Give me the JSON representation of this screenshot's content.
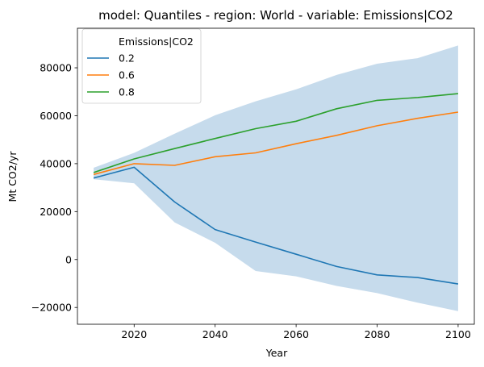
{
  "chart_data": {
    "type": "line",
    "title": "model: Quantiles - region: World - variable: Emissions|CO2",
    "xlabel": "Year",
    "ylabel": "Mt CO2/yr",
    "xlim": [
      2006,
      2104
    ],
    "ylim": [
      -27000,
      96500
    ],
    "xticks": [
      2020,
      2040,
      2060,
      2080,
      2100
    ],
    "yticks": [
      -20000,
      0,
      20000,
      40000,
      60000,
      80000
    ],
    "ytick_labels": [
      "−20000",
      "0",
      "20000",
      "40000",
      "60000",
      "80000"
    ],
    "grid": false,
    "legend": {
      "title": "Emissions|CO2",
      "placement": "top-left"
    },
    "x": [
      2010,
      2020,
      2030,
      2040,
      2050,
      2060,
      2070,
      2080,
      2090,
      2100
    ],
    "band": {
      "color": "#c6dbec",
      "lower": [
        33500,
        31800,
        15500,
        7000,
        -4800,
        -7000,
        -11000,
        -14000,
        -18000,
        -21500
      ],
      "upper": [
        38300,
        44500,
        52500,
        60200,
        66000,
        71000,
        77000,
        81700,
        84000,
        89300
      ]
    },
    "series": [
      {
        "name": "0.2",
        "color": "#1f77b4",
        "values": [
          34000,
          38500,
          24000,
          12500,
          7300,
          2200,
          -2900,
          -6400,
          -7500,
          -10200
        ]
      },
      {
        "name": "0.6",
        "color": "#ff7f0e",
        "values": [
          35500,
          40000,
          39300,
          42900,
          44500,
          48300,
          51800,
          55800,
          58900,
          61500
        ]
      },
      {
        "name": "0.8",
        "color": "#2ca02c",
        "values": [
          36300,
          42000,
          46300,
          50500,
          54600,
          57700,
          62900,
          66400,
          67600,
          69200
        ]
      }
    ]
  }
}
